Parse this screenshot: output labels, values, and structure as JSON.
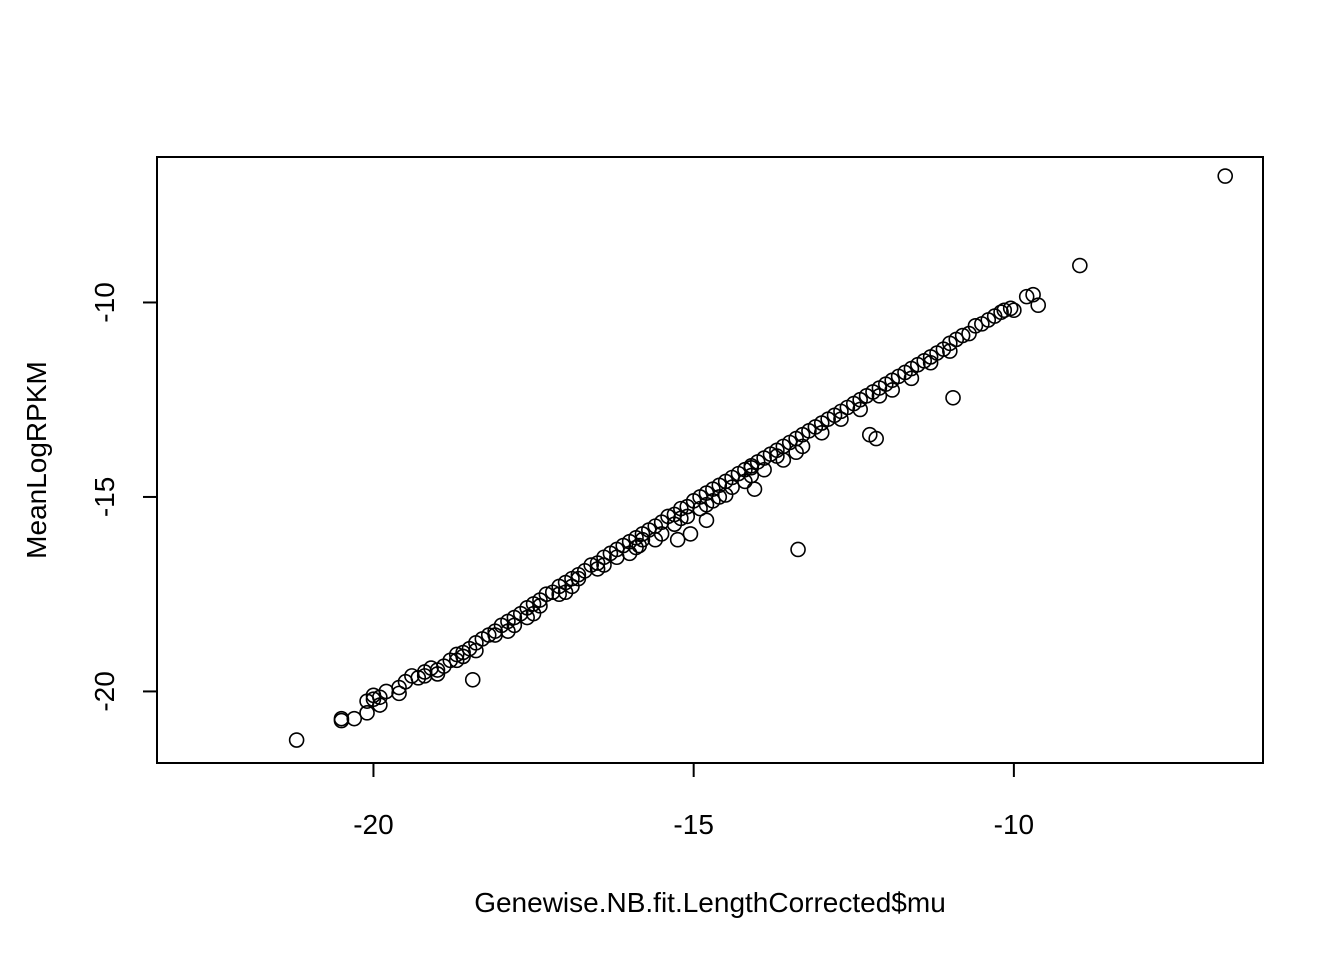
{
  "chart_data": {
    "type": "scatter",
    "title": "",
    "xlabel": "Genewise.NB.fit.LengthCorrected$mu",
    "ylabel": "MeanLogRPKM",
    "xlim": [
      -23.38,
      -6.11
    ],
    "ylim": [
      -21.84,
      -6.26
    ],
    "xticks": [
      -20,
      -15,
      -10
    ],
    "xtick_labels": [
      "-20",
      "-15",
      "-10"
    ],
    "yticks": [
      -20,
      -15,
      -10
    ],
    "ytick_labels": [
      "-20",
      "-15",
      "-10"
    ],
    "grid": false,
    "legend": "none",
    "marker": "open-circle",
    "series": [
      {
        "points": [
          [
            -21.2,
            -21.25
          ],
          [
            -20.5,
            -20.7
          ],
          [
            -20.5,
            -20.75
          ],
          [
            -20.3,
            -20.7
          ],
          [
            -20.1,
            -20.55
          ],
          [
            -20.1,
            -20.25
          ],
          [
            -20.0,
            -20.1
          ],
          [
            -20.0,
            -20.2
          ],
          [
            -19.9,
            -20.35
          ],
          [
            -19.9,
            -20.15
          ],
          [
            -19.8,
            -20.0
          ],
          [
            -19.6,
            -20.05
          ],
          [
            -19.6,
            -19.9
          ],
          [
            -19.5,
            -19.75
          ],
          [
            -19.4,
            -19.6
          ],
          [
            -19.3,
            -19.65
          ],
          [
            -19.2,
            -19.5
          ],
          [
            -19.1,
            -19.4
          ],
          [
            -19.0,
            -19.45
          ],
          [
            -18.9,
            -19.35
          ],
          [
            -18.8,
            -19.2
          ],
          [
            -18.7,
            -19.05
          ],
          [
            -18.6,
            -19.0
          ],
          [
            -18.5,
            -18.9
          ],
          [
            -18.4,
            -18.75
          ],
          [
            -18.3,
            -18.65
          ],
          [
            -18.2,
            -18.55
          ],
          [
            -18.1,
            -18.45
          ],
          [
            -18.0,
            -18.3
          ],
          [
            -17.9,
            -18.2
          ],
          [
            -17.8,
            -18.1
          ],
          [
            -17.7,
            -18.0
          ],
          [
            -17.6,
            -17.85
          ],
          [
            -17.5,
            -17.75
          ],
          [
            -17.4,
            -17.65
          ],
          [
            -17.3,
            -17.5
          ],
          [
            -17.2,
            -17.45
          ],
          [
            -17.1,
            -17.3
          ],
          [
            -17.0,
            -17.2
          ],
          [
            -16.9,
            -17.1
          ],
          [
            -16.8,
            -17.0
          ],
          [
            -16.7,
            -16.9
          ],
          [
            -16.6,
            -16.75
          ],
          [
            -16.5,
            -16.7
          ],
          [
            -16.4,
            -16.55
          ],
          [
            -16.3,
            -16.45
          ],
          [
            -16.2,
            -16.35
          ],
          [
            -16.1,
            -16.25
          ],
          [
            -16.0,
            -16.15
          ],
          [
            -15.9,
            -16.05
          ],
          [
            -15.8,
            -15.95
          ],
          [
            -15.7,
            -15.85
          ],
          [
            -15.6,
            -15.75
          ],
          [
            -15.5,
            -15.65
          ],
          [
            -15.4,
            -15.5
          ],
          [
            -15.3,
            -15.45
          ],
          [
            -15.2,
            -15.3
          ],
          [
            -15.1,
            -15.25
          ],
          [
            -15.0,
            -15.1
          ],
          [
            -14.9,
            -15.0
          ],
          [
            -14.8,
            -14.9
          ],
          [
            -14.7,
            -14.8
          ],
          [
            -14.6,
            -14.7
          ],
          [
            -14.5,
            -14.6
          ],
          [
            -14.4,
            -14.5
          ],
          [
            -14.3,
            -14.4
          ],
          [
            -14.2,
            -14.3
          ],
          [
            -14.1,
            -14.2
          ],
          [
            -14.0,
            -14.1
          ],
          [
            -13.9,
            -14.0
          ],
          [
            -13.8,
            -13.9
          ],
          [
            -13.7,
            -13.8
          ],
          [
            -13.6,
            -13.7
          ],
          [
            -13.5,
            -13.6
          ],
          [
            -13.4,
            -13.5
          ],
          [
            -13.3,
            -13.4
          ],
          [
            -13.2,
            -13.3
          ],
          [
            -13.1,
            -13.2
          ],
          [
            -13.0,
            -13.1
          ],
          [
            -12.9,
            -13.0
          ],
          [
            -12.8,
            -12.9
          ],
          [
            -12.7,
            -12.8
          ],
          [
            -12.6,
            -12.7
          ],
          [
            -12.5,
            -12.6
          ],
          [
            -12.4,
            -12.5
          ],
          [
            -12.3,
            -12.4
          ],
          [
            -12.2,
            -12.3
          ],
          [
            -12.1,
            -12.2
          ],
          [
            -12.0,
            -12.1
          ],
          [
            -11.9,
            -12.0
          ],
          [
            -11.8,
            -11.9
          ],
          [
            -11.7,
            -11.8
          ],
          [
            -11.6,
            -11.7
          ],
          [
            -11.5,
            -11.6
          ],
          [
            -11.4,
            -11.5
          ],
          [
            -11.3,
            -11.4
          ],
          [
            -11.2,
            -11.3
          ],
          [
            -11.1,
            -11.2
          ],
          [
            -11.0,
            -11.05
          ],
          [
            -10.9,
            -10.95
          ],
          [
            -10.8,
            -10.85
          ],
          [
            -10.7,
            -10.8
          ],
          [
            -10.6,
            -10.6
          ],
          [
            -10.5,
            -10.55
          ],
          [
            -10.4,
            -10.45
          ],
          [
            -10.3,
            -10.35
          ],
          [
            -10.2,
            -10.25
          ],
          [
            -10.15,
            -10.2
          ],
          [
            -10.05,
            -10.15
          ],
          [
            -10.0,
            -10.2
          ],
          [
            -9.8,
            -9.85
          ],
          [
            -9.7,
            -9.8
          ],
          [
            -9.62,
            -10.07
          ],
          [
            -19.2,
            -19.6
          ],
          [
            -19.0,
            -19.55
          ],
          [
            -18.7,
            -19.2
          ],
          [
            -18.4,
            -18.95
          ],
          [
            -18.1,
            -18.55
          ],
          [
            -17.9,
            -18.45
          ],
          [
            -17.6,
            -18.1
          ],
          [
            -17.4,
            -17.8
          ],
          [
            -17.1,
            -17.5
          ],
          [
            -16.8,
            -17.1
          ],
          [
            -16.5,
            -16.85
          ],
          [
            -16.2,
            -16.55
          ],
          [
            -16.0,
            -16.45
          ],
          [
            -15.8,
            -16.1
          ],
          [
            -15.5,
            -15.95
          ],
          [
            -15.3,
            -15.7
          ],
          [
            -15.1,
            -15.5
          ],
          [
            -14.9,
            -15.3
          ],
          [
            -14.7,
            -15.1
          ],
          [
            -14.5,
            -14.95
          ],
          [
            -14.2,
            -14.6
          ],
          [
            -13.9,
            -14.3
          ],
          [
            -13.6,
            -14.05
          ],
          [
            -13.3,
            -13.7
          ],
          [
            -13.0,
            -13.35
          ],
          [
            -12.7,
            -13.0
          ],
          [
            -12.4,
            -12.75
          ],
          [
            -12.1,
            -12.4
          ],
          [
            -11.9,
            -12.25
          ],
          [
            -11.6,
            -11.95
          ],
          [
            -11.3,
            -11.55
          ],
          [
            -11.0,
            -11.25
          ],
          [
            -18.6,
            -19.1
          ],
          [
            -17.8,
            -18.3
          ],
          [
            -17.0,
            -17.45
          ],
          [
            -16.4,
            -16.75
          ],
          [
            -15.6,
            -16.1
          ],
          [
            -15.2,
            -15.55
          ],
          [
            -14.8,
            -15.2
          ],
          [
            -14.4,
            -14.75
          ],
          [
            -14.1,
            -14.45
          ],
          [
            -13.7,
            -13.95
          ],
          [
            -17.5,
            -18.0
          ],
          [
            -16.9,
            -17.3
          ],
          [
            -15.9,
            -16.3
          ],
          [
            -15.05,
            -15.95
          ],
          [
            -14.8,
            -15.6
          ],
          [
            -14.6,
            -15.0
          ],
          [
            -14.1,
            -14.25
          ],
          [
            -13.4,
            -13.85
          ],
          [
            -18.45,
            -19.7
          ],
          [
            -15.25,
            -16.1
          ],
          [
            -15.85,
            -16.25
          ],
          [
            -14.05,
            -14.8
          ],
          [
            -10.95,
            -12.45
          ],
          [
            -12.25,
            -13.4
          ],
          [
            -12.15,
            -13.5
          ],
          [
            -13.37,
            -16.35
          ],
          [
            -8.97,
            -9.05
          ],
          [
            -6.7,
            -6.75
          ]
        ]
      }
    ]
  }
}
